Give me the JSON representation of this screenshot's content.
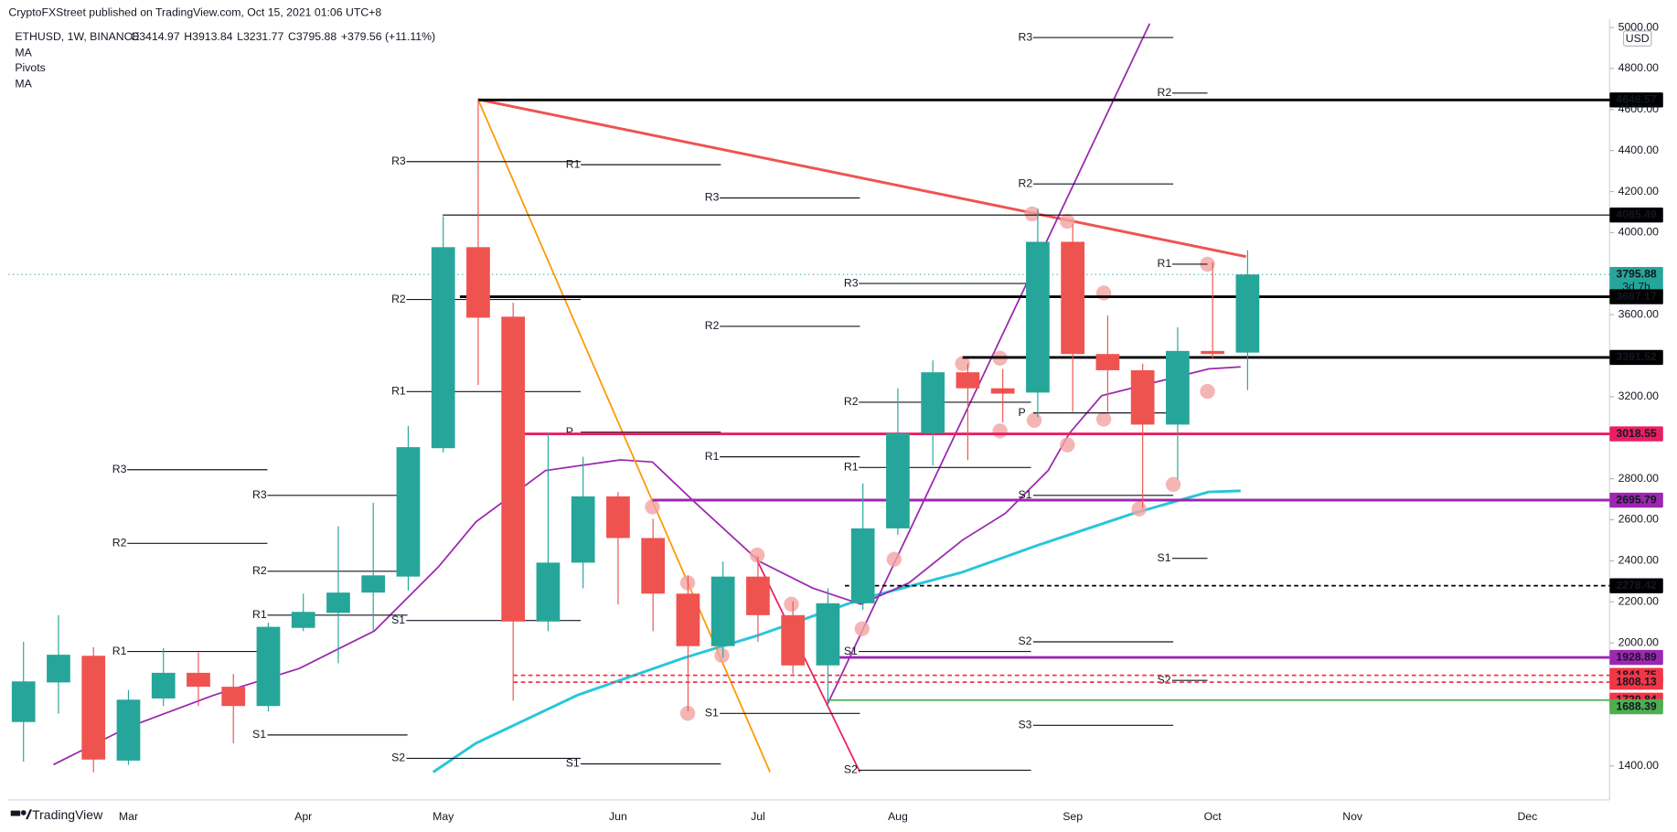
{
  "chart_data": {
    "type": "candlestick",
    "publisher": "CryptoFXStreet published on TradingView.com, Oct 15, 2021 01:06 UTC+8",
    "symbol": "ETHUSD, 1W, BINANCE",
    "ohlc_legend": [
      "O3414.97",
      "H3913.84",
      "L3231.77",
      "C3795.88",
      "+379.56 (+11.11%)"
    ],
    "indicators": [
      "MA",
      "Pivots",
      "MA"
    ],
    "currency": "USD",
    "brand": "TradingView",
    "categories": [
      null,
      null,
      null,
      "Mar",
      null,
      null,
      null,
      null,
      "Apr",
      null,
      null,
      null,
      "May",
      null,
      null,
      null,
      null,
      "Jun",
      null,
      null,
      null,
      "Jul",
      null,
      null,
      null,
      "Aug",
      null,
      null,
      null,
      null,
      "Sep",
      null,
      null,
      null,
      "Oct",
      null,
      null,
      null,
      "Nov",
      null,
      null,
      null,
      null,
      "Dec",
      null,
      null
    ],
    "open": [
      1614,
      1807,
      1937,
      1426,
      1729,
      1854,
      1786,
      1692,
      2073,
      2146,
      2245,
      2323,
      2949,
      3929,
      3590,
      2104,
      2391,
      2714,
      2511,
      2240,
      1984,
      2323,
      2135,
      1890,
      2193,
      2558,
      3022,
      3319,
      3241,
      3220,
      3955,
      3408,
      3329,
      3064,
      3423,
      3414.97,
      null,
      null,
      null,
      null,
      null,
      null,
      null,
      null,
      null,
      null
    ],
    "high": [
      2005,
      2135,
      1979,
      1770,
      1974,
      1953,
      1848,
      2099,
      2240,
      2568,
      2683,
      3058,
      4080,
      4649,
      3658,
      3022,
      2907,
      2735,
      2605,
      2328,
      2396,
      2422,
      2203,
      2266,
      2777,
      3241,
      3377,
      3361,
      3335,
      4117,
      4039,
      3596,
      3361,
      3538,
      3856,
      3913.84,
      null,
      null,
      null,
      null,
      null,
      null,
      null,
      null,
      null,
      null
    ],
    "low": [
      1421,
      1655,
      1369,
      1405,
      1692,
      1692,
      1510,
      1666,
      2057,
      1900,
      2057,
      2255,
      2928,
      3257,
      1718,
      2057,
      2266,
      2187,
      2057,
      1666,
      1927,
      2005,
      1848,
      1692,
      2161,
      2526,
      2865,
      2891,
      3074,
      3100,
      3126,
      3126,
      2657,
      2798,
      3387,
      3231.77,
      null,
      null,
      null,
      null,
      null,
      null,
      null,
      null,
      null,
      null
    ],
    "close": [
      1812,
      1942,
      1431,
      1723,
      1854,
      1786,
      1692,
      2078,
      2151,
      2245,
      2329,
      2954,
      3929,
      3585,
      2104,
      2391,
      2714,
      2511,
      2240,
      1984,
      2323,
      2135,
      1890,
      2193,
      2558,
      3022,
      3319,
      3241,
      3215,
      3955,
      3408,
      3329,
      3064,
      3423,
      3408,
      3795.88,
      null,
      null,
      null,
      null,
      null,
      null,
      null,
      null,
      null,
      null
    ],
    "up_color": "#26a69a",
    "down_color": "#ef5350",
    "ylim": [
      1250,
      5040
    ],
    "yticks": [
      {
        "value": 5000,
        "label": "5000.00"
      },
      {
        "value": 4800,
        "label": "4800.00"
      },
      {
        "value": 4600,
        "label": "4600.00"
      },
      {
        "value": 4400,
        "label": "4400.00"
      },
      {
        "value": 4200,
        "label": "4200.00"
      },
      {
        "value": 4000,
        "label": "4000.00"
      },
      {
        "value": 3600,
        "label": "3600.00"
      },
      {
        "value": 3200,
        "label": "3200.00"
      },
      {
        "value": 2800,
        "label": "2800.00"
      },
      {
        "value": 2600,
        "label": "2600.00"
      },
      {
        "value": 2400,
        "label": "2400.00"
      },
      {
        "value": 2200,
        "label": "2200.00"
      },
      {
        "value": 2000,
        "label": "2000.00"
      },
      {
        "value": 1400,
        "label": "1400.00"
      }
    ],
    "grid": false,
    "levels": [
      {
        "value": 4646.57,
        "color": "#000000"
      },
      {
        "value": 4085.49,
        "color": "#000000"
      },
      {
        "value": 3795.88,
        "color": "#26a69a",
        "sublabel": "3d 7h"
      },
      {
        "value": 3687.17,
        "color": "#000000"
      },
      {
        "value": 3391.52,
        "color": "#000000"
      },
      {
        "value": 3018.55,
        "color": "#e91e63"
      },
      {
        "value": 2695.79,
        "color": "#9c27b0"
      },
      {
        "value": 2278.42,
        "color": "#000000"
      },
      {
        "value": 1928.89,
        "color": "#9c27b0"
      },
      {
        "value": 1841.75,
        "color": "#f23645"
      },
      {
        "value": 1808.13,
        "color": "#f23645"
      },
      {
        "value": 1720.84,
        "color": "#f23645"
      },
      {
        "value": 1688.39,
        "color": "#4caf50"
      }
    ],
    "pivots": [
      {
        "label": "R3",
        "value": 4951
      },
      {
        "label": "R2",
        "value": 4680
      },
      {
        "label": "R2",
        "value": 4237
      },
      {
        "label": "R1",
        "value": 3846
      },
      {
        "label": "R3",
        "value": 4346
      },
      {
        "label": "R1",
        "value": 4331
      },
      {
        "label": "R3",
        "value": 4169
      },
      {
        "label": "R2",
        "value": 3674
      },
      {
        "label": "R3",
        "value": 3752
      },
      {
        "label": "R2",
        "value": 3543
      },
      {
        "label": "R1",
        "value": 3225
      },
      {
        "label": "R2",
        "value": 3173
      },
      {
        "label": "P",
        "value": 3121
      },
      {
        "label": "P",
        "value": 3027
      },
      {
        "label": "R1",
        "value": 2907
      },
      {
        "label": "R3",
        "value": 2844
      },
      {
        "label": "R1",
        "value": 2855
      },
      {
        "label": "R3",
        "value": 2719
      },
      {
        "label": "S1",
        "value": 2719
      },
      {
        "label": "R2",
        "value": 2485
      },
      {
        "label": "S1",
        "value": 2412
      },
      {
        "label": "R2",
        "value": 2349
      },
      {
        "label": "R1",
        "value": 2135
      },
      {
        "label": "S1",
        "value": 2109
      },
      {
        "label": "S2",
        "value": 2005
      },
      {
        "label": "R1",
        "value": 1958
      },
      {
        "label": "S1",
        "value": 1958
      },
      {
        "label": "S2",
        "value": 1817
      },
      {
        "label": "S1",
        "value": 1656
      },
      {
        "label": "S1",
        "value": 1551
      },
      {
        "label": "S3",
        "value": 1598
      },
      {
        "label": "S2",
        "value": 1437
      },
      {
        "label": "S1",
        "value": 1410
      },
      {
        "label": "S2",
        "value": 1379
      }
    ]
  }
}
